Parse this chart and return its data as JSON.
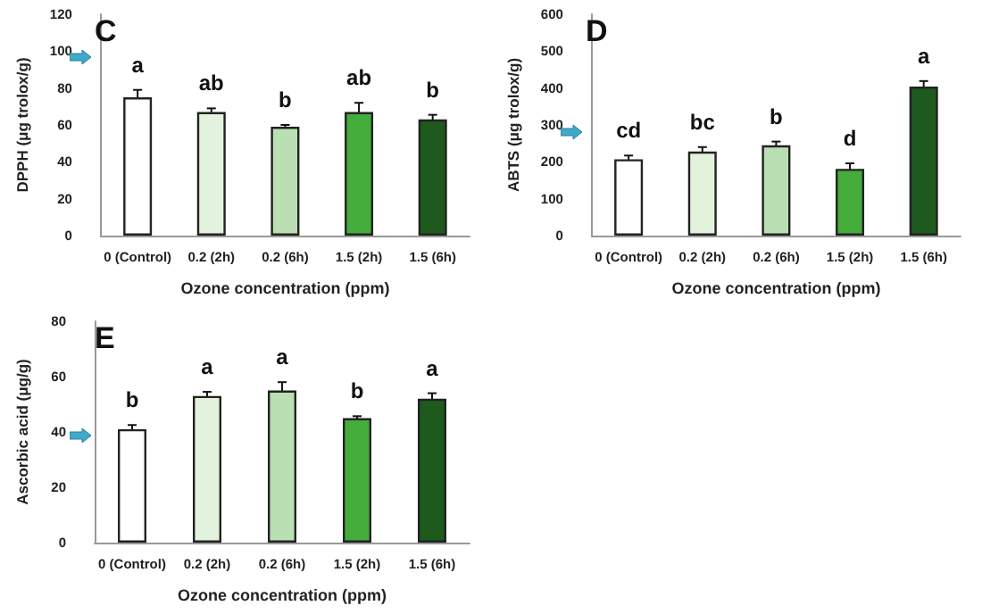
{
  "chart_data": [
    {
      "type": "bar",
      "title": "C",
      "xlabel": "Ozone concentration (ppm)",
      "ylabel": "DPPH (μg trolox/g)",
      "categories": [
        "0 (Control)",
        "0.2 (2h)",
        "0.2 (6h)",
        "1.5 (2h)",
        "1.5 (6h)"
      ],
      "values": [
        75,
        67,
        59,
        67,
        63
      ],
      "errors": [
        4,
        2,
        1,
        5,
        2.5
      ],
      "value_labels": [
        "a",
        "ab",
        "b",
        "ab",
        "b"
      ],
      "colors": [
        "#ffffff",
        "#e2f2dc",
        "#b9dfb2",
        "#44ad3c",
        "#1e5a1e"
      ],
      "ylim": [
        0,
        120
      ],
      "yticks": [
        0,
        20,
        40,
        60,
        80,
        100,
        120
      ],
      "grid": false
    },
    {
      "type": "bar",
      "title": "D",
      "xlabel": "Ozone concentration (ppm)",
      "ylabel": "ABTS (μg trolox/g)",
      "categories": [
        "0 (Control)",
        "0.2 (2h)",
        "0.2 (6h)",
        "1.5 (2h)",
        "1.5 (6h)"
      ],
      "values": [
        207,
        228,
        245,
        181,
        404
      ],
      "errors": [
        10,
        12,
        10,
        15,
        15
      ],
      "value_labels": [
        "cd",
        "bc",
        "b",
        "d",
        "a"
      ],
      "colors": [
        "#ffffff",
        "#e2f2dc",
        "#b9dfb2",
        "#44ad3c",
        "#1e5a1e"
      ],
      "ylim": [
        0,
        600
      ],
      "yticks": [
        0,
        100,
        200,
        300,
        400,
        500,
        600
      ],
      "grid": false
    },
    {
      "type": "bar",
      "title": "E",
      "xlabel": "Ozone concentration (ppm)",
      "ylabel": "Ascorbic acid (μg/g)",
      "categories": [
        "0 (Control)",
        "0.2 (2h)",
        "0.2 (6h)",
        "1.5 (2h)",
        "1.5 (6h)"
      ],
      "values": [
        41,
        53,
        55,
        45,
        52
      ],
      "errors": [
        1.5,
        1.5,
        3,
        0.7,
        2
      ],
      "value_labels": [
        "b",
        "a",
        "a",
        "b",
        "a"
      ],
      "colors": [
        "#ffffff",
        "#e2f2dc",
        "#b9dfb2",
        "#44ad3c",
        "#1e5a1e"
      ],
      "ylim": [
        0,
        80
      ],
      "yticks": [
        0,
        20,
        40,
        60,
        80
      ],
      "grid": false
    }
  ]
}
